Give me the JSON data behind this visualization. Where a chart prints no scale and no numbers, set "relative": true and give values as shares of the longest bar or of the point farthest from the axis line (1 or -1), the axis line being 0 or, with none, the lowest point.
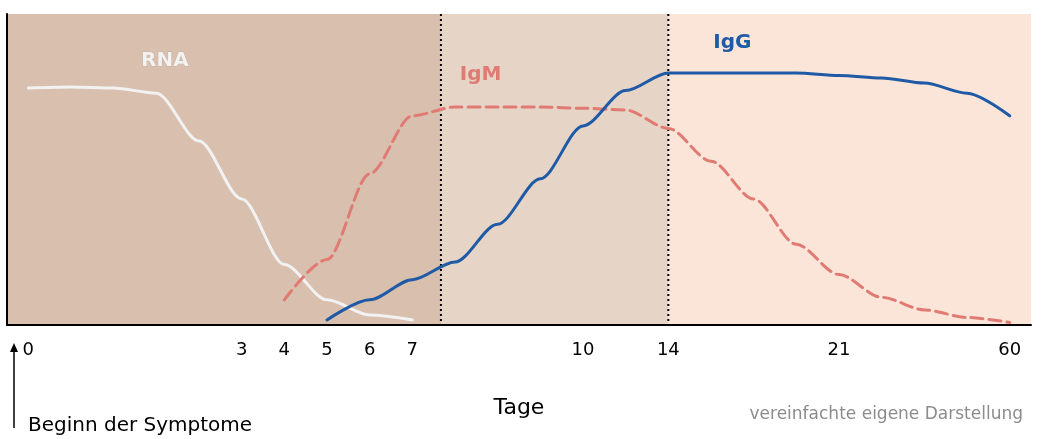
{
  "chart_data": {
    "type": "line",
    "relative": true,
    "xlabel": "Tage",
    "categories": [
      "0",
      null,
      null,
      null,
      null,
      "3",
      "4",
      "5",
      "6",
      "7",
      null,
      null,
      null,
      "10",
      null,
      "14",
      null,
      null,
      null,
      "21",
      null,
      null,
      null,
      "60"
    ],
    "series": [
      {
        "name": "RNA",
        "color": "#f2f2f2",
        "line_style": "solid",
        "values": [
          0.94,
          0.944,
          0.94,
          0.92,
          0.73,
          0.5,
          0.24,
          0.1,
          0.04,
          0.02,
          null,
          null,
          null,
          null,
          null,
          null,
          null,
          null,
          null,
          null,
          null,
          null,
          null,
          null
        ]
      },
      {
        "name": "IgM",
        "color": "#e07b74",
        "line_style": "dashed",
        "values": [
          null,
          null,
          null,
          null,
          null,
          null,
          0.1,
          0.26,
          0.6,
          0.83,
          0.865,
          0.865,
          0.865,
          0.86,
          0.853,
          0.78,
          0.65,
          0.5,
          0.32,
          0.2,
          0.11,
          0.06,
          0.03,
          0.01
        ]
      },
      {
        "name": "IgG",
        "color": "#1f5aa6",
        "line_style": "solid",
        "values": [
          null,
          null,
          null,
          null,
          null,
          null,
          null,
          0.02,
          0.1,
          0.18,
          0.25,
          0.4,
          0.58,
          0.79,
          0.93,
          1,
          1,
          1,
          1,
          0.99,
          0.98,
          0.96,
          0.92,
          0.83
        ]
      }
    ],
    "bands": [
      {
        "axis": "x",
        "from": "14",
        "to": "60",
        "color": "#fbe5d8"
      }
    ],
    "ref_lines": [
      {
        "axis": "x",
        "value": "14",
        "line_style": "dotted",
        "color": "#000000"
      }
    ],
    "annotations": [
      "Beginn der Symptome",
      "vereinfachte eigene Darstellung"
    ],
    "legend": false,
    "grid": false,
    "marker": "none"
  }
}
